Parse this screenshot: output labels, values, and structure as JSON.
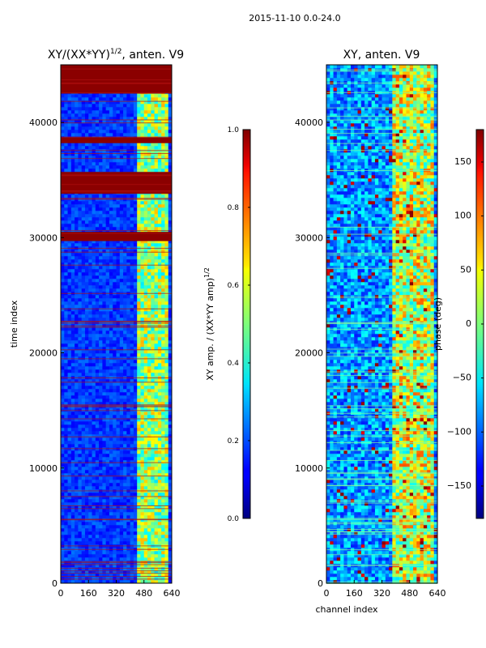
{
  "figure": {
    "suptitle": "2015-11-10 0.0-24.0"
  },
  "chart_data": [
    {
      "type": "heatmap",
      "title_main": "XY/(XX*YY)",
      "title_exponent": "1/2",
      "title_suffix": ", anten. V9",
      "xlabel": "",
      "ylabel": "time index",
      "xlim": [
        0,
        640
      ],
      "ylim": [
        0,
        45000
      ],
      "x_ticks": [
        0,
        160,
        320,
        480,
        640
      ],
      "y_ticks": [
        0,
        10000,
        20000,
        30000,
        40000
      ],
      "colorbar": {
        "label_main": "XY amp. / (XX*YY amp)",
        "label_exponent": "1/2",
        "range": [
          0.0,
          1.0
        ],
        "ticks": [
          "0.0",
          "0.2",
          "0.4",
          "0.6",
          "0.8",
          "1.0"
        ],
        "tick_values": [
          0.0,
          0.2,
          0.4,
          0.6,
          0.8,
          1.0
        ],
        "colormap": "jet"
      },
      "features": {
        "bright_channel_band": [
          440,
          620
        ],
        "saturated_time_bands": [
          [
            33800,
            35700
          ],
          [
            38200,
            38700
          ],
          [
            29700,
            30500
          ],
          [
            42500,
            45000
          ]
        ]
      }
    },
    {
      "type": "heatmap",
      "title_main": "XY, anten. V9",
      "xlabel": "channel index",
      "ylabel": "",
      "xlim": [
        0,
        640
      ],
      "ylim": [
        0,
        45000
      ],
      "x_ticks": [
        0,
        160,
        320,
        480,
        640
      ],
      "y_ticks": [
        0,
        10000,
        20000,
        30000,
        40000
      ],
      "colorbar": {
        "label_main": "phase (deg)",
        "range": [
          -180,
          180
        ],
        "ticks": [
          "−150",
          "−100",
          "−50",
          "0",
          "50",
          "100",
          "150"
        ],
        "tick_values": [
          -150,
          -100,
          -50,
          0,
          50,
          100,
          150
        ],
        "colormap": "jet"
      },
      "features": {
        "bright_channel_band": [
          390,
          620
        ]
      }
    }
  ]
}
